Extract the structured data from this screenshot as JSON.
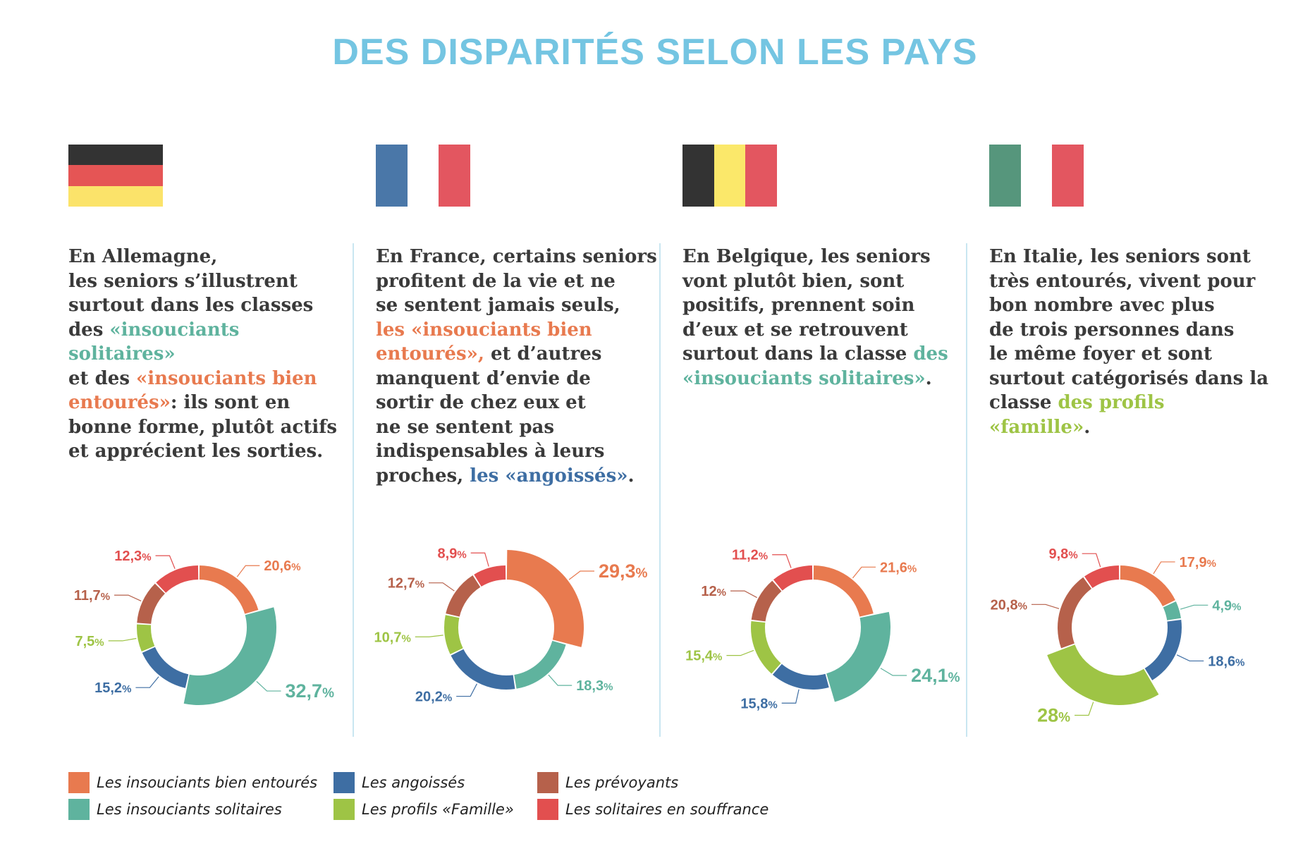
{
  "title": "DES DISPARITÉS SELON LES PAYS",
  "colors": {
    "insouciants_bien_entoures": "#e87a4f",
    "insouciants_solitaires": "#5fb39e",
    "angoisses": "#3e6ea3",
    "profils_famille": "#9ec445",
    "prevoyants": "#b6614b",
    "solitaires_souffrance": "#e24f4f",
    "text": "#3a3a3a",
    "title": "#74c5e2",
    "divider": "#c9e6f1"
  },
  "legend": [
    {
      "key": "insouciants_bien_entoures",
      "label": "Les insouciants bien entourés"
    },
    {
      "key": "insouciants_solitaires",
      "label": "Les insouciants solitaires"
    },
    {
      "key": "angoisses",
      "label": "Les angoissés"
    },
    {
      "key": "profils_famille",
      "label": "Les profils «Famille»"
    },
    {
      "key": "prevoyants",
      "label": "Les prévoyants"
    },
    {
      "key": "solitaires_souffrance",
      "label": "Les solitaires en souffrance"
    }
  ],
  "countries": [
    {
      "name": "Allemagne",
      "flag": {
        "orientation": "horizontal",
        "stripes": [
          "#333333",
          "#e55555",
          "#fbe36a"
        ]
      },
      "text": [
        {
          "t": "En Allemagne,"
        },
        {
          "br": true
        },
        {
          "t": "les seniors s’illustrent"
        },
        {
          "br": true
        },
        {
          "t": "surtout dans les classes"
        },
        {
          "br": true
        },
        {
          "t": "des "
        },
        {
          "t": "«insouciants solitaires»",
          "c": "insouciants_solitaires"
        },
        {
          "br": true
        },
        {
          "t": "et des "
        },
        {
          "t": "«insouciants bien",
          "c": "insouciants_bien_entoures"
        },
        {
          "br": true
        },
        {
          "t": "entourés»",
          "c": "insouciants_bien_entoures"
        },
        {
          "t": ": ils sont en"
        },
        {
          "br": true
        },
        {
          "t": "bonne forme, plutôt actifs"
        },
        {
          "br": true
        },
        {
          "t": "et apprécient les sorties."
        }
      ]
    },
    {
      "name": "France",
      "flag": {
        "orientation": "vertical",
        "stripes": [
          "#4a77a8",
          "#ffffff",
          "#e35660"
        ]
      },
      "text": [
        {
          "t": "En France, certains seniors"
        },
        {
          "br": true
        },
        {
          "t": "profitent de la vie et ne"
        },
        {
          "br": true
        },
        {
          "t": "se sentent jamais seuls,"
        },
        {
          "br": true
        },
        {
          "t": "les «insouciants bien",
          "c": "insouciants_bien_entoures"
        },
        {
          "br": true
        },
        {
          "t": "entourés»,",
          "c": "insouciants_bien_entoures"
        },
        {
          "t": " et d’autres"
        },
        {
          "br": true
        },
        {
          "t": "manquent d’envie de"
        },
        {
          "br": true
        },
        {
          "t": "sortir de chez eux et"
        },
        {
          "br": true
        },
        {
          "t": "ne se sentent pas"
        },
        {
          "br": true
        },
        {
          "t": "indispensables à leurs"
        },
        {
          "br": true
        },
        {
          "t": "proches, "
        },
        {
          "t": "les «angoissés»",
          "c": "angoisses"
        },
        {
          "t": "."
        }
      ]
    },
    {
      "name": "Belgique",
      "flag": {
        "orientation": "vertical",
        "stripes": [
          "#333333",
          "#fbe86a",
          "#e35660"
        ]
      },
      "text": [
        {
          "t": "En Belgique, les seniors"
        },
        {
          "br": true
        },
        {
          "t": "vont plutôt bien, sont"
        },
        {
          "br": true
        },
        {
          "t": "positifs, prennent soin"
        },
        {
          "br": true
        },
        {
          "t": "d’eux et se retrouvent"
        },
        {
          "br": true
        },
        {
          "t": "surtout dans la classe "
        },
        {
          "t": "des",
          "c": "insouciants_solitaires"
        },
        {
          "br": true
        },
        {
          "t": "«insouciants solitaires»",
          "c": "insouciants_solitaires"
        },
        {
          "t": "."
        }
      ]
    },
    {
      "name": "Italie",
      "flag": {
        "orientation": "vertical",
        "stripes": [
          "#56967c",
          "#ffffff",
          "#e35660"
        ]
      },
      "text": [
        {
          "t": "En Italie, les seniors sont"
        },
        {
          "br": true
        },
        {
          "t": "très entourés, vivent pour"
        },
        {
          "br": true
        },
        {
          "t": "bon nombre avec plus"
        },
        {
          "br": true
        },
        {
          "t": "de trois personnes dans"
        },
        {
          "br": true
        },
        {
          "t": "le même foyer et sont"
        },
        {
          "br": true
        },
        {
          "t": "surtout catégorisés dans la"
        },
        {
          "br": true
        },
        {
          "t": "classe "
        },
        {
          "t": "des profils «famille»",
          "c": "profils_famille"
        },
        {
          "t": "."
        }
      ]
    }
  ],
  "chart_data": [
    {
      "type": "pie",
      "country": "Allemagne",
      "slices": [
        {
          "key": "insouciants_bien_entoures",
          "value": 20.6,
          "label": "20,6"
        },
        {
          "key": "insouciants_solitaires",
          "value": 32.7,
          "label": "32,7"
        },
        {
          "key": "angoisses",
          "value": 15.2,
          "label": "15,2"
        },
        {
          "key": "profils_famille",
          "value": 7.5,
          "label": "7,5"
        },
        {
          "key": "prevoyants",
          "value": 11.7,
          "label": "11,7"
        },
        {
          "key": "solitaires_souffrance",
          "value": 12.3,
          "label": "12,3"
        }
      ],
      "highlight": "insouciants_solitaires"
    },
    {
      "type": "pie",
      "country": "France",
      "slices": [
        {
          "key": "insouciants_bien_entoures",
          "value": 29.3,
          "label": "29,3"
        },
        {
          "key": "insouciants_solitaires",
          "value": 18.3,
          "label": "18,3"
        },
        {
          "key": "angoisses",
          "value": 20.2,
          "label": "20,2"
        },
        {
          "key": "profils_famille",
          "value": 10.7,
          "label": "10,7"
        },
        {
          "key": "prevoyants",
          "value": 12.7,
          "label": "12,7"
        },
        {
          "key": "solitaires_souffrance",
          "value": 8.9,
          "label": "8,9"
        }
      ],
      "highlight": "insouciants_bien_entoures"
    },
    {
      "type": "pie",
      "country": "Belgique",
      "slices": [
        {
          "key": "insouciants_bien_entoures",
          "value": 21.6,
          "label": "21,6"
        },
        {
          "key": "insouciants_solitaires",
          "value": 24.1,
          "label": "24,1"
        },
        {
          "key": "angoisses",
          "value": 15.8,
          "label": "15,8"
        },
        {
          "key": "profils_famille",
          "value": 15.4,
          "label": "15,4"
        },
        {
          "key": "prevoyants",
          "value": 12,
          "label": "12"
        },
        {
          "key": "solitaires_souffrance",
          "value": 11.2,
          "label": "11,2"
        }
      ],
      "highlight": "insouciants_solitaires"
    },
    {
      "type": "pie",
      "country": "Italie",
      "slices": [
        {
          "key": "insouciants_bien_entoures",
          "value": 17.9,
          "label": "17,9"
        },
        {
          "key": "insouciants_solitaires",
          "value": 4.9,
          "label": "4,9"
        },
        {
          "key": "angoisses",
          "value": 18.6,
          "label": "18,6"
        },
        {
          "key": "profils_famille",
          "value": 28,
          "label": "28"
        },
        {
          "key": "prevoyants",
          "value": 20.8,
          "label": "20,8"
        },
        {
          "key": "solitaires_souffrance",
          "value": 9.8,
          "label": "9,8"
        }
      ],
      "highlight": "profils_famille"
    }
  ]
}
